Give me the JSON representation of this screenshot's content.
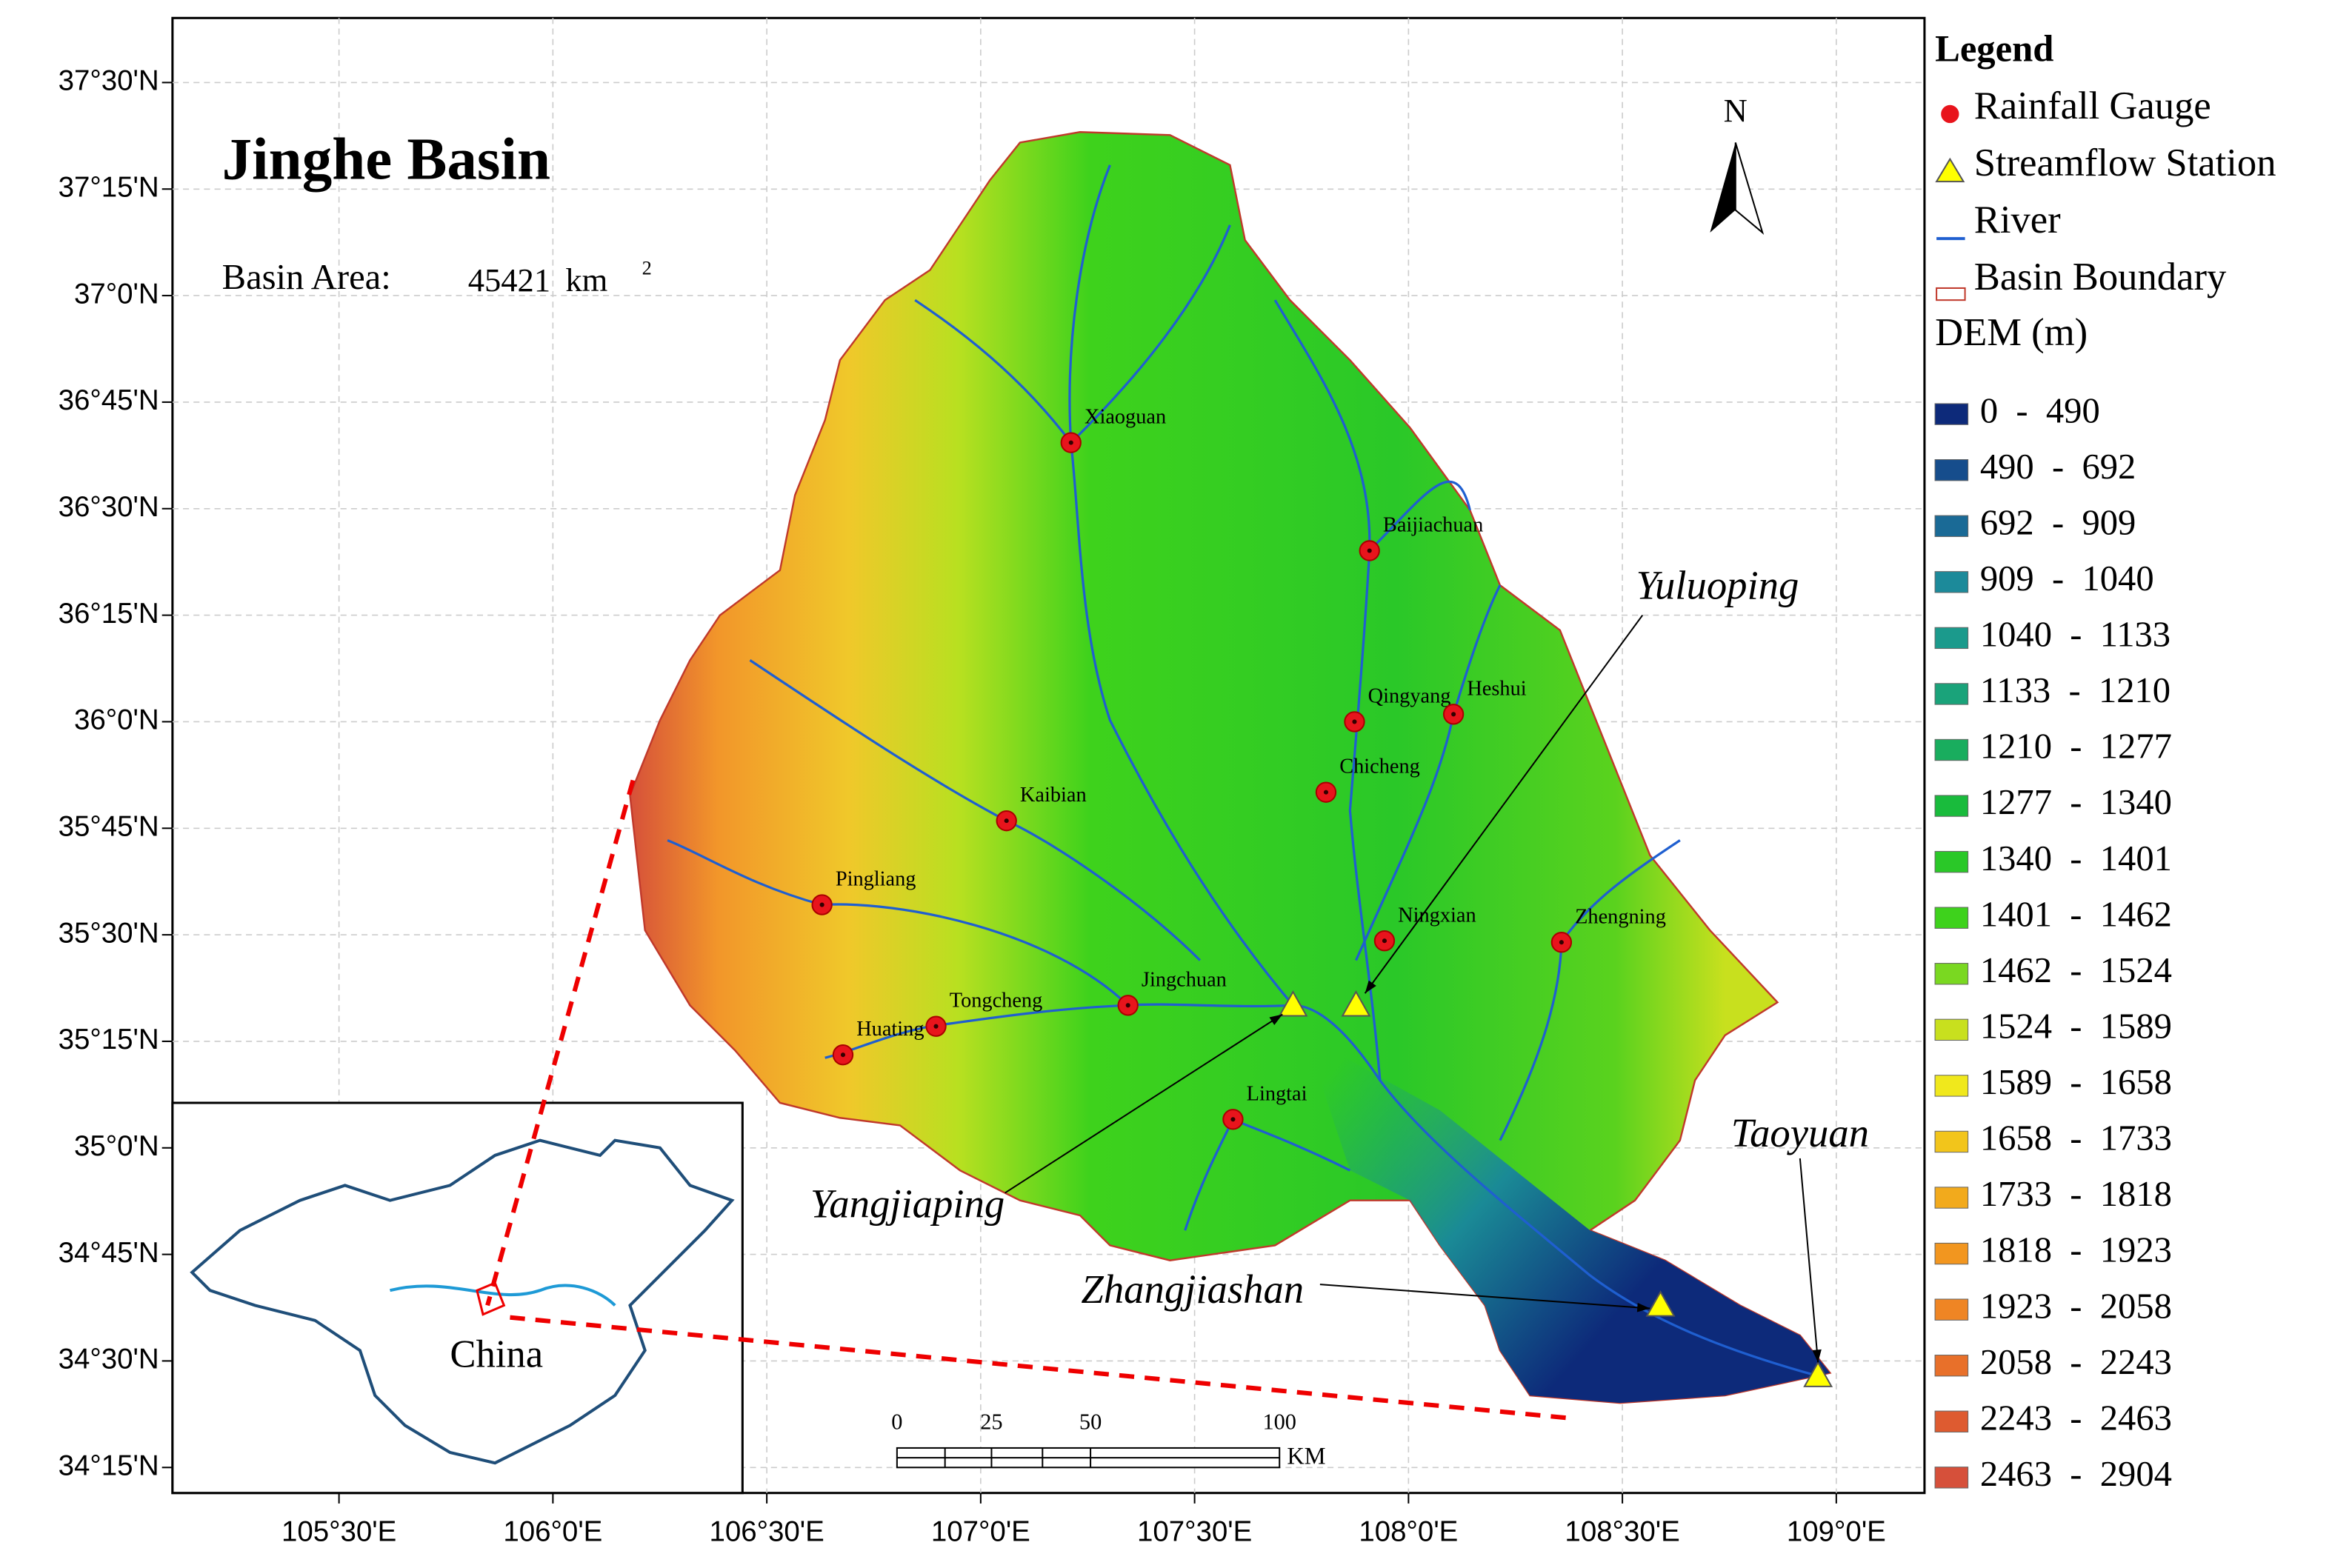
{
  "map": {
    "title": "Jinghe Basin",
    "area_label": "Basin Area:",
    "area_value": "45421",
    "area_unit": "km",
    "area_unit_sup": "2",
    "north": "N",
    "inset_label": "China"
  },
  "lat_ticks": [
    "37°30'N",
    "37°15'N",
    "37°0'N",
    "36°45'N",
    "36°30'N",
    "36°15'N",
    "36°0'N",
    "35°45'N",
    "35°30'N",
    "35°15'N",
    "35°0'N",
    "34°45'N",
    "34°30'N",
    "34°15'N"
  ],
  "lon_ticks": [
    "105°30'E",
    "106°0'E",
    "106°30'E",
    "107°0'E",
    "107°30'E",
    "108°0'E",
    "108°30'E",
    "109°0'E"
  ],
  "rainfall_gauges": [
    "Xiaoguan",
    "Baijiachuan",
    "Qingyang",
    "Heshui",
    "Chicheng",
    "Kaibian",
    "Pingliang",
    "Ningxian",
    "Zhengning",
    "Jingchuan",
    "Tongcheng",
    "Huating",
    "Lingtai"
  ],
  "streamflow_stations": [
    "Yangjiaping",
    "Yuluoping",
    "Zhangjiashan",
    "Taoyuan"
  ],
  "scale_bar": {
    "ticks": [
      "0",
      "25",
      "50",
      "100"
    ],
    "unit": "KM"
  },
  "legend": {
    "title": "Legend",
    "items": [
      "Rainfall Gauge",
      "Streamflow Station",
      "River",
      "Basin Boundary"
    ],
    "dem_title": "DEM (m)",
    "dem_classes": [
      {
        "label": "0  -  490",
        "color": "#0d2a7a"
      },
      {
        "label": "490  -  692",
        "color": "#164d8c"
      },
      {
        "label": "692  -  909",
        "color": "#1a6a96"
      },
      {
        "label": "909  -  1040",
        "color": "#1c8a9a"
      },
      {
        "label": "1040  -  1133",
        "color": "#1b9a8c"
      },
      {
        "label": "1133  -  1210",
        "color": "#1aa37a"
      },
      {
        "label": "1210  -  1277",
        "color": "#19ad5e"
      },
      {
        "label": "1277  -  1340",
        "color": "#19bb3c"
      },
      {
        "label": "1340  -  1401",
        "color": "#2ac828"
      },
      {
        "label": "1401  -  1462",
        "color": "#3ed21c"
      },
      {
        "label": "1462  -  1524",
        "color": "#7ad821"
      },
      {
        "label": "1524  -  1589",
        "color": "#c8e01e"
      },
      {
        "label": "1589  -  1658",
        "color": "#f0e81c"
      },
      {
        "label": "1658  -  1733",
        "color": "#f2c51b"
      },
      {
        "label": "1733  -  1818",
        "color": "#f2aa1c"
      },
      {
        "label": "1818  -  1923",
        "color": "#f2961f"
      },
      {
        "label": "1923  -  2058",
        "color": "#ef8524"
      },
      {
        "label": "2058  -  2243",
        "color": "#e8702a"
      },
      {
        "label": "2243  -  2463",
        "color": "#de5b30"
      },
      {
        "label": "2463  -  2904",
        "color": "#d6503a"
      }
    ]
  }
}
